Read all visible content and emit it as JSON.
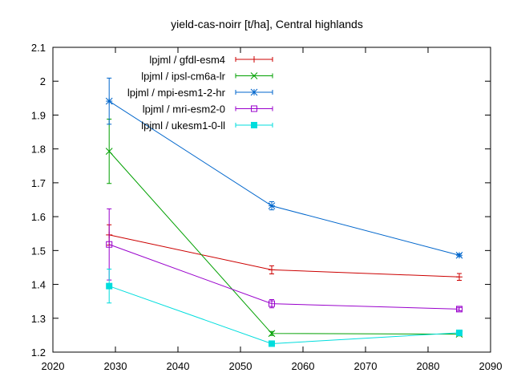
{
  "chart_data": {
    "type": "line",
    "title": "yield-cas-noirr [t/ha], Central highlands",
    "xlabel": "",
    "ylabel": "",
    "xlim": [
      2020,
      2090
    ],
    "ylim": [
      1.2,
      2.1
    ],
    "xticks": [
      2020,
      2030,
      2040,
      2050,
      2060,
      2070,
      2080,
      2090
    ],
    "yticks": [
      1.2,
      1.3,
      1.4,
      1.5,
      1.6,
      1.7,
      1.8,
      1.9,
      2.0,
      2.1
    ],
    "xtick_labels": [
      "2020",
      "2030",
      "2040",
      "2050",
      "2060",
      "2070",
      "2080",
      "2090"
    ],
    "ytick_labels": [
      "1.2",
      "1.3",
      "1.4",
      "1.5",
      "1.6",
      "1.7",
      "1.8",
      "1.9",
      "2",
      "2.1"
    ],
    "legend_position": "top-left",
    "grid": false,
    "x": [
      2029,
      2055,
      2085
    ],
    "series": [
      {
        "name": "lpjml / gfdl-esm4",
        "color": "#cc0000",
        "marker": "plus",
        "values": [
          1.546,
          1.443,
          1.422
        ],
        "errors": [
          0.03,
          0.012,
          0.01
        ]
      },
      {
        "name": "lpjml / ipsl-cm6a-lr",
        "color": "#00a000",
        "marker": "x",
        "values": [
          1.793,
          1.255,
          1.253
        ],
        "errors": [
          0.095,
          0.006,
          0.005
        ]
      },
      {
        "name": "lpjml / mpi-esm1-2-hr",
        "color": "#0066cc",
        "marker": "star",
        "values": [
          1.941,
          1.632,
          1.486
        ],
        "errors": [
          0.068,
          0.012,
          0.004
        ]
      },
      {
        "name": "lpjml / mri-esm2-0",
        "color": "#9900cc",
        "marker": "square-open",
        "values": [
          1.518,
          1.343,
          1.327
        ],
        "errors": [
          0.105,
          0.012,
          0.005
        ]
      },
      {
        "name": "lpjml / ukesm1-0-ll",
        "color": "#00dddd",
        "marker": "square-filled",
        "values": [
          1.395,
          1.225,
          1.257
        ],
        "errors": [
          0.05,
          0.003,
          0.005
        ]
      }
    ]
  }
}
